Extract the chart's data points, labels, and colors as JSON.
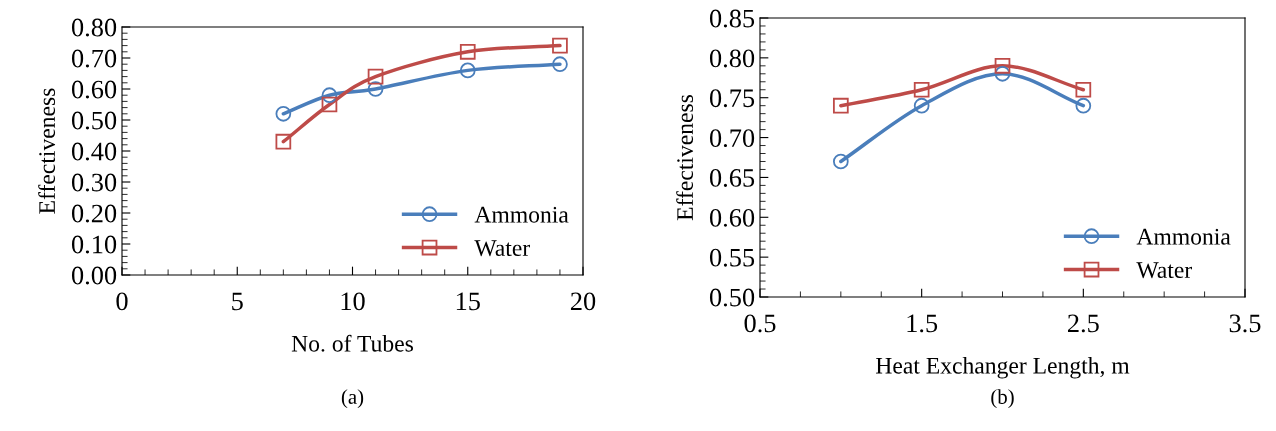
{
  "chart_data": [
    {
      "type": "line",
      "xlabel": "No. of Tubes",
      "ylabel": "Effectiveness",
      "annotations": [
        "(a)"
      ],
      "xlim": [
        0,
        20
      ],
      "xticks": [
        0,
        5,
        10,
        15,
        20
      ],
      "ylim": [
        0,
        0.8
      ],
      "yticks": [
        {
          "value": 0,
          "label": "0.00"
        },
        {
          "value": 0.1,
          "label": "0.10"
        },
        {
          "value": 0.2,
          "label": "0.20"
        },
        {
          "value": 0.3,
          "label": "0.30"
        },
        {
          "value": 0.4,
          "label": "0.40"
        },
        {
          "value": 0.5,
          "label": "0.50"
        },
        {
          "value": 0.6,
          "label": "0.60"
        },
        {
          "value": 0.7,
          "label": "0.70"
        },
        {
          "value": 0.8,
          "label": "0.80"
        }
      ],
      "grid": false,
      "legend": "bottom right",
      "x": [
        7,
        9,
        11,
        15,
        19
      ],
      "series": [
        {
          "name": "Ammonia",
          "color": "#4a7ebb",
          "marker": "circle",
          "values": [
            0.52,
            0.58,
            0.6,
            0.66,
            0.68
          ]
        },
        {
          "name": "Water",
          "color": "#be4b48",
          "marker": "square",
          "values": [
            0.43,
            0.55,
            0.64,
            0.72,
            0.74
          ]
        }
      ]
    },
    {
      "type": "line",
      "xlabel": "Heat Exchanger Length, m",
      "ylabel": "Effectiveness",
      "annotations": [
        "(b)"
      ],
      "xlim": [
        0.5,
        3.5
      ],
      "xticks": [
        0.5,
        1.5,
        2.5,
        3.5
      ],
      "ylim": [
        0.5,
        0.85
      ],
      "yticks": [
        {
          "value": 0.5,
          "label": "0.50"
        },
        {
          "value": 0.55,
          "label": "0.55"
        },
        {
          "value": 0.6,
          "label": "0.60"
        },
        {
          "value": 0.65,
          "label": "0.65"
        },
        {
          "value": 0.7,
          "label": "0.70"
        },
        {
          "value": 0.75,
          "label": "0.75"
        },
        {
          "value": 0.8,
          "label": "0.80"
        },
        {
          "value": 0.85,
          "label": "0.85"
        }
      ],
      "grid": false,
      "legend": "bottom right",
      "x": [
        1,
        1.5,
        2,
        2.5
      ],
      "series": [
        {
          "name": "Ammonia",
          "color": "#4a7ebb",
          "marker": "circle",
          "values": [
            0.67,
            0.74,
            0.78,
            0.74
          ]
        },
        {
          "name": "Water",
          "color": "#be4b48",
          "marker": "square",
          "values": [
            0.74,
            0.76,
            0.79,
            0.76
          ]
        }
      ]
    }
  ]
}
